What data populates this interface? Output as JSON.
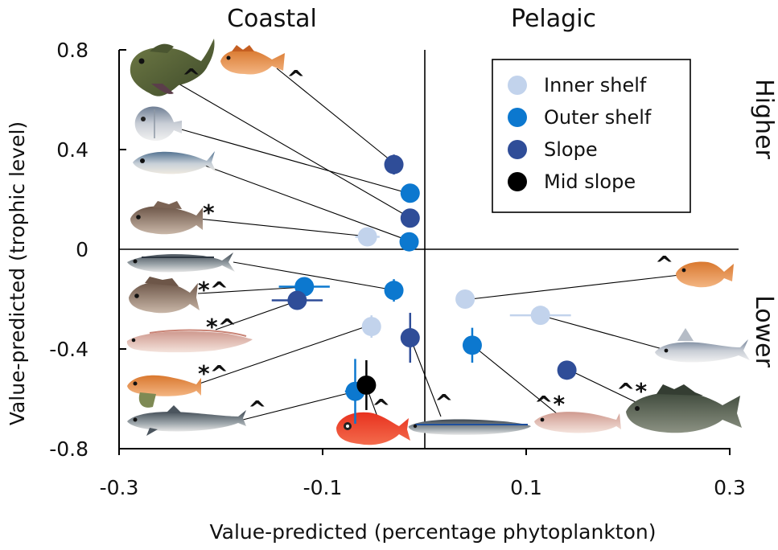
{
  "chart_data": {
    "type": "scatter",
    "xlabel": "Value-predicted (percentage phytoplankton)",
    "ylabel": "Value-predicted (trophic level)",
    "xlim": [
      -0.3,
      0.3
    ],
    "ylim": [
      -0.8,
      0.8
    ],
    "x_ticks": [
      "-0.3",
      "-0.1",
      "0.1",
      "0.3"
    ],
    "y_ticks": [
      "0.8",
      "0.4",
      "0",
      "-0.4",
      "-0.8"
    ],
    "quadrant_labels": {
      "left": "Coastal",
      "right": "Pelagic",
      "top": "Higher",
      "bottom": "Lower"
    },
    "legend": {
      "position": "top-right",
      "entries": [
        {
          "name": "Inner shelf",
          "color": "#c2d3ec"
        },
        {
          "name": "Outer shelf",
          "color": "#0c78cf"
        },
        {
          "name": "Slope",
          "color": "#2f4d98"
        },
        {
          "name": "Mid slope",
          "color": "#000000"
        }
      ]
    },
    "series": [
      {
        "name": "Inner shelf",
        "color": "#c2d3ec",
        "points": [
          {
            "x": -0.056,
            "y": 0.05,
            "xerr": 0.012,
            "yerr": 0.0
          },
          {
            "x": -0.052,
            "y": -0.31,
            "xerr": 0.0,
            "yerr": 0.045
          },
          {
            "x": 0.04,
            "y": -0.2,
            "xerr": 0.0,
            "yerr": 0.0
          },
          {
            "x": 0.114,
            "y": -0.265,
            "xerr": 0.03,
            "yerr": 0.03
          }
        ]
      },
      {
        "name": "Outer shelf",
        "color": "#0c78cf",
        "points": [
          {
            "x": -0.014,
            "y": 0.225,
            "xerr": 0.0,
            "yerr": 0.03
          },
          {
            "x": -0.015,
            "y": 0.03,
            "xerr": 0.0,
            "yerr": 0.0
          },
          {
            "x": -0.118,
            "y": -0.15,
            "xerr": 0.025,
            "yerr": 0.015
          },
          {
            "x": -0.03,
            "y": -0.165,
            "xerr": 0.0,
            "yerr": 0.045
          },
          {
            "x": 0.047,
            "y": -0.385,
            "xerr": 0.0,
            "yerr": 0.07
          },
          {
            "x": -0.068,
            "y": -0.57,
            "xerr": 0.01,
            "yerr": 0.13
          }
        ]
      },
      {
        "name": "Slope",
        "color": "#2f4d98",
        "points": [
          {
            "x": -0.03,
            "y": 0.34,
            "xerr": 0.0,
            "yerr": 0.04
          },
          {
            "x": -0.014,
            "y": 0.125,
            "xerr": 0.0,
            "yerr": 0.0
          },
          {
            "x": -0.125,
            "y": -0.205,
            "xerr": 0.025,
            "yerr": 0.0
          },
          {
            "x": -0.014,
            "y": -0.355,
            "xerr": 0.0,
            "yerr": 0.1
          },
          {
            "x": 0.14,
            "y": -0.485,
            "xerr": 0.0,
            "yerr": 0.0
          }
        ]
      },
      {
        "name": "Mid slope",
        "color": "#000000",
        "points": [
          {
            "x": -0.057,
            "y": -0.545,
            "xerr": 0.0,
            "yerr": 0.1
          }
        ]
      }
    ],
    "fish_marks": [
      {
        "id": "sculpin",
        "mark": "^"
      },
      {
        "id": "rockfish",
        "mark": "^"
      },
      {
        "id": "dory",
        "mark": ""
      },
      {
        "id": "scad",
        "mark": ""
      },
      {
        "id": "cod",
        "mark": "*"
      },
      {
        "id": "mackerel",
        "mark": ""
      },
      {
        "id": "snapper",
        "mark": "*^"
      },
      {
        "id": "ling",
        "mark": "*^"
      },
      {
        "id": "gurnard",
        "mark": "*^"
      },
      {
        "id": "dogshark",
        "mark": "^"
      },
      {
        "id": "roughy",
        "mark": "^"
      },
      {
        "id": "frostfish",
        "mark": "^"
      },
      {
        "id": "leatherjacket",
        "mark": "^"
      },
      {
        "id": "elephantfish",
        "mark": ""
      },
      {
        "id": "redcod",
        "mark": "^*"
      },
      {
        "id": "grouper",
        "mark": "^*"
      }
    ]
  }
}
